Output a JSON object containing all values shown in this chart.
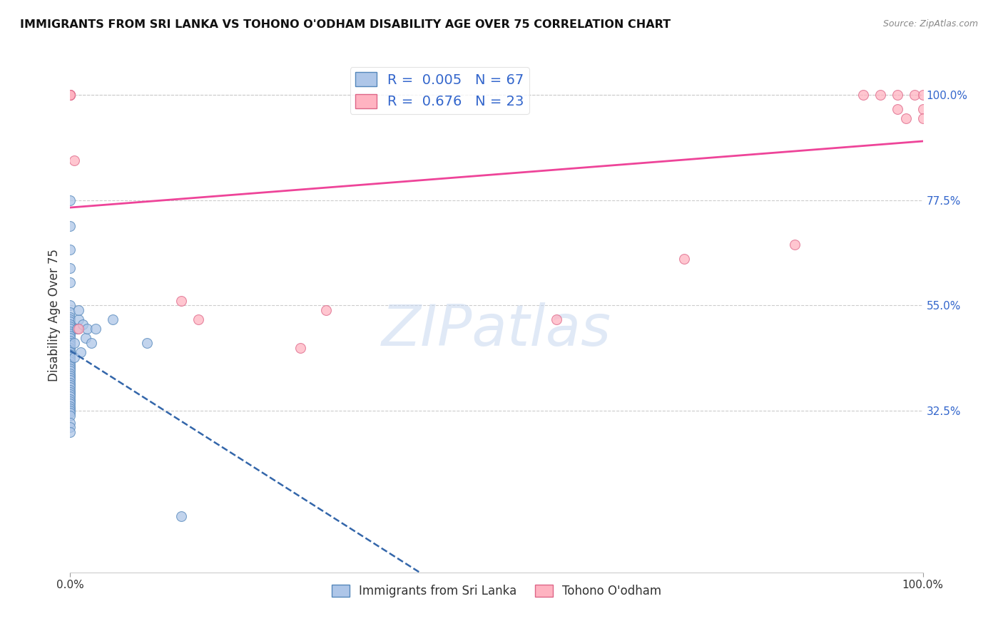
{
  "title": "IMMIGRANTS FROM SRI LANKA VS TOHONO O'ODHAM DISABILITY AGE OVER 75 CORRELATION CHART",
  "source": "Source: ZipAtlas.com",
  "ylabel": "Disability Age Over 75",
  "x_min": 0.0,
  "x_max": 1.0,
  "y_min": -0.02,
  "y_max": 1.08,
  "y_tick_labels_right": [
    "100.0%",
    "77.5%",
    "55.0%",
    "32.5%"
  ],
  "y_tick_positions_right": [
    1.0,
    0.775,
    0.55,
    0.325
  ],
  "watermark_text": "ZIPatlas",
  "series": [
    {
      "name": "Immigrants from Sri Lanka",
      "color": "#aec6e8",
      "edge_color": "#5588bb",
      "R": 0.005,
      "N": 67,
      "trend_color": "#3366aa",
      "trend_style": "--",
      "trend_lw": 1.8,
      "x": [
        0.0,
        0.0,
        0.0,
        0.0,
        0.0,
        0.0,
        0.0,
        0.0,
        0.0,
        0.0,
        0.0,
        0.0,
        0.0,
        0.0,
        0.0,
        0.0,
        0.0,
        0.0,
        0.0,
        0.0,
        0.0,
        0.0,
        0.0,
        0.0,
        0.0,
        0.0,
        0.0,
        0.0,
        0.0,
        0.0,
        0.0,
        0.0,
        0.0,
        0.0,
        0.0,
        0.0,
        0.0,
        0.0,
        0.0,
        0.0,
        0.0,
        0.0,
        0.0,
        0.0,
        0.0,
        0.0,
        0.0,
        0.0,
        0.0,
        0.0,
        0.0,
        0.0,
        0.0,
        0.005,
        0.005,
        0.008,
        0.01,
        0.01,
        0.012,
        0.015,
        0.018,
        0.02,
        0.025,
        0.03,
        0.05,
        0.09,
        0.13
      ],
      "y": [
        0.775,
        0.72,
        0.67,
        0.63,
        0.6,
        0.55,
        0.535,
        0.525,
        0.52,
        0.515,
        0.51,
        0.505,
        0.5,
        0.495,
        0.49,
        0.485,
        0.48,
        0.475,
        0.47,
        0.465,
        0.46,
        0.455,
        0.45,
        0.445,
        0.44,
        0.435,
        0.43,
        0.425,
        0.42,
        0.415,
        0.41,
        0.405,
        0.4,
        0.395,
        0.39,
        0.385,
        0.38,
        0.375,
        0.37,
        0.365,
        0.36,
        0.355,
        0.35,
        0.345,
        0.34,
        0.335,
        0.33,
        0.325,
        0.32,
        0.315,
        0.3,
        0.29,
        0.28,
        0.44,
        0.47,
        0.5,
        0.52,
        0.54,
        0.45,
        0.51,
        0.48,
        0.5,
        0.47,
        0.5,
        0.52,
        0.47,
        0.1
      ]
    },
    {
      "name": "Tohono O'odham",
      "color": "#ffb3c1",
      "edge_color": "#dd6688",
      "R": 0.676,
      "N": 23,
      "trend_color": "#ee4499",
      "trend_style": "-",
      "trend_lw": 2.0,
      "x": [
        0.0,
        0.0,
        0.0,
        0.0,
        0.0,
        0.005,
        0.01,
        0.13,
        0.15,
        0.27,
        0.3,
        0.57,
        0.72,
        0.85,
        0.93,
        0.95,
        0.97,
        0.97,
        0.98,
        0.99,
        1.0,
        1.0,
        1.0
      ],
      "y": [
        1.0,
        1.0,
        1.0,
        1.0,
        1.0,
        0.86,
        0.5,
        0.56,
        0.52,
        0.46,
        0.54,
        0.52,
        0.65,
        0.68,
        1.0,
        1.0,
        1.0,
        0.97,
        0.95,
        1.0,
        1.0,
        0.97,
        0.95
      ]
    }
  ]
}
